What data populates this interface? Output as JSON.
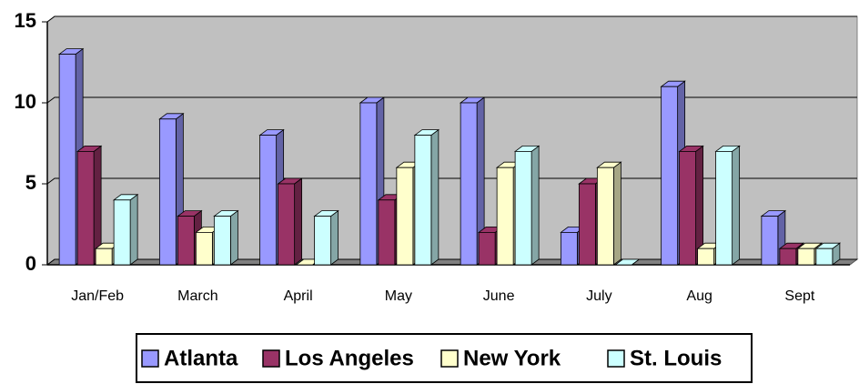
{
  "chart_data": {
    "type": "bar3d",
    "categories": [
      "Jan/Feb",
      "March",
      "April",
      "May",
      "June",
      "July",
      "Aug",
      "Sept"
    ],
    "series": [
      {
        "name": "Atlanta",
        "color": "#9999ff",
        "values": [
          13,
          9,
          8,
          10,
          10,
          2,
          11,
          3
        ]
      },
      {
        "name": "Los Angeles",
        "color": "#993366",
        "values": [
          7,
          3,
          5,
          4,
          2,
          5,
          7,
          1
        ]
      },
      {
        "name": "New York",
        "color": "#ffffcc",
        "values": [
          1,
          2,
          0,
          6,
          6,
          6,
          1,
          1
        ]
      },
      {
        "name": "St. Louis",
        "color": "#ccffff",
        "values": [
          4,
          3,
          3,
          8,
          7,
          0,
          7,
          1
        ]
      }
    ],
    "ylim": [
      0,
      15
    ],
    "yticks": [
      0,
      5,
      10,
      15
    ],
    "grid": true,
    "legend": "bottom"
  }
}
